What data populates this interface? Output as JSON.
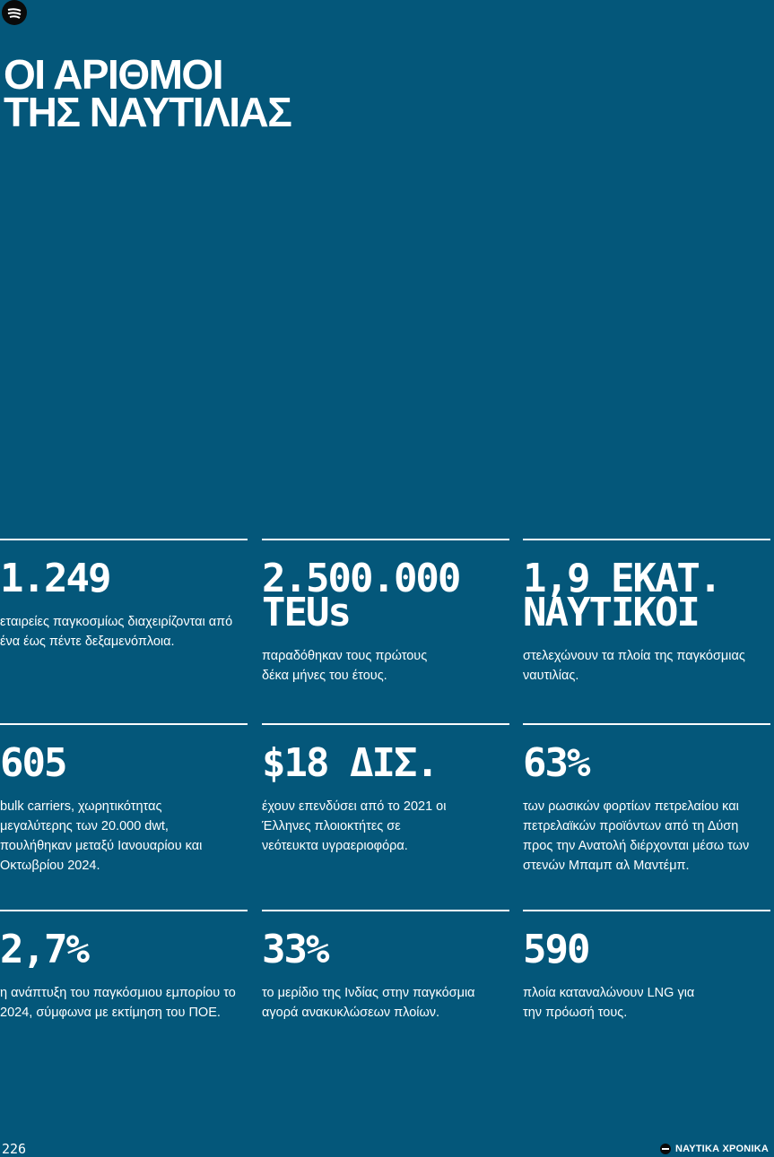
{
  "title": {
    "line1": "ΟΙ ΑΡΙΘΜΟΙ",
    "line2": "ΤΗΣ ΝΑΥΤΙΛΙΑΣ"
  },
  "stats": [
    {
      "value": "1.249",
      "text": "εταιρείες παγκοσμίως διαχειρίζονται από ένα έως πέντε δεξαμενόπλοια."
    },
    {
      "value": "2.500.000\nTEUs",
      "text": "παραδόθηκαν τους πρώτους δέκα μήνες του έτους."
    },
    {
      "value": "1,9 ΕΚΑΤ.\nΝΑΥΤΙΚΟΙ",
      "text": "στελεχώνουν τα πλοία της παγκόσμιας ναυτιλίας."
    },
    {
      "value": "605",
      "text": "bulk carriers, χωρητικότητας μεγαλύτερης των 20.000 dwt, πουλήθηκαν μεταξύ Ιανουαρίου και Οκτωβρίου 2024."
    },
    {
      "value": "$18 ΔΙΣ.",
      "text": "έχουν επενδύσει από το 2021 οι Έλληνες πλοιοκτήτες σε νεότευκτα υγραεριοφόρα."
    },
    {
      "value": "63%",
      "text": "των ρωσικών φορτίων πετρελαίου και πετρελαϊκών προϊόντων από τη Δύση προς την Ανατολή διέρχονται μέσω των στενών Μπαμπ αλ Μαντέμπ."
    },
    {
      "value": "2,7%",
      "text": "η ανάπτυξη του παγκόσμιου εμπορίου το 2024, σύμφωνα με εκτίμηση του ΠΟΕ."
    },
    {
      "value": "33%",
      "text": "το μερίδιο της Ινδίας στην παγκόσμια αγορά ανακυκλώσεων πλοίων."
    },
    {
      "value": "590",
      "text": "πλοία καταναλώνουν LNG για την πρόωσή τους."
    }
  ],
  "footer": {
    "page_number": "226",
    "brand": "ΝΑΥΤΙΚΑ ΧΡΟΝΙΚΑ"
  },
  "colors": {
    "background": "#04577a",
    "text": "#ffffff",
    "logo": "#0a0a0a"
  },
  "icons": {
    "logo": "brand-logo-icon"
  }
}
